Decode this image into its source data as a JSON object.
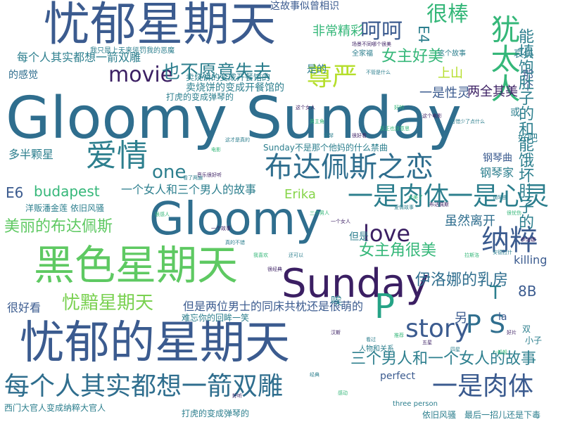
{
  "words": [
    {
      "id": "w-gloomy-sunday",
      "text": "Gloomy Sunday",
      "color": "#2f6e8e"
    },
    {
      "id": "w-youyu-xingqitian",
      "text": "忧郁星期天",
      "color": "#3b5b8f"
    },
    {
      "id": "w-youyu-de-xingqitian",
      "text": "忧郁的星期天",
      "color": "#3b5b8f"
    },
    {
      "id": "w-heise-xingqitian",
      "text": "黑色星期天",
      "color": "#5ec962"
    },
    {
      "id": "w-gloomy",
      "text": "Gloomy",
      "color": "#2f6e8e"
    },
    {
      "id": "w-sunday",
      "text": "Sunday",
      "color": "#3b1f63"
    },
    {
      "id": "w-meige-yijian",
      "text": "每个人其实都想一箭双雕",
      "color": "#2f6e8e"
    },
    {
      "id": "w-yishirouti-big",
      "text": "一是肉体",
      "color": "#3b5b8f"
    },
    {
      "id": "w-budapeisi-zhilian",
      "text": "布达佩斯之恋",
      "color": "#2f6e8e"
    },
    {
      "id": "w-aiqing",
      "text": "爱情",
      "color": "#2d7f8e"
    },
    {
      "id": "w-yishirouti-mid",
      "text": "一是肉体",
      "color": "#2d7f8e"
    },
    {
      "id": "w-yishixinling",
      "text": "一是心灵",
      "color": "#2d7f8e"
    },
    {
      "id": "w-zunyan",
      "text": "尊严",
      "color": "#b5de2b"
    },
    {
      "id": "w-nacui",
      "text": "纳粹",
      "color": "#3b5b8f"
    },
    {
      "id": "w-p",
      "text": "P",
      "color": "#25a386"
    },
    {
      "id": "w-youtairen",
      "text": "犹太人",
      "color": "#35b779"
    },
    {
      "id": "w-henbang",
      "text": "很棒",
      "color": "#35b779"
    },
    {
      "id": "w-hehe",
      "text": "呵呵",
      "color": "#3b5b8f"
    },
    {
      "id": "w-movie",
      "text": "movie",
      "color": "#3b1f63"
    },
    {
      "id": "w-yebuyuan",
      "text": "也不愿意失去",
      "color": "#2d7f8e"
    },
    {
      "id": "w-story",
      "text": "story",
      "color": "#3b5b8f"
    },
    {
      "id": "w-ps",
      "text": "P S",
      "color": "#2f6e8e"
    },
    {
      "id": "w-one",
      "text": "one",
      "color": "#2d7f8e"
    },
    {
      "id": "w-love",
      "text": "love",
      "color": "#3b1f63"
    },
    {
      "id": "w-youan-xingqitian",
      "text": "忧黯星期天",
      "color": "#7ad151"
    },
    {
      "id": "w-sange-nanren",
      "text": "三个男人和一个女人的故事",
      "color": "#2d7f8e"
    },
    {
      "id": "w-nvzhujue",
      "text": "女主角很美",
      "color": "#35b779"
    },
    {
      "id": "w-yiluona",
      "text": "伊洛娜的乳房",
      "color": "#2f6e8e"
    },
    {
      "id": "w-nvzhu-haomei",
      "text": "女主好美",
      "color": "#35b779"
    },
    {
      "id": "w-meili-budapeisi",
      "text": "美丽的布达佩斯",
      "color": "#5ec962"
    },
    {
      "id": "w-budapest",
      "text": "budapest",
      "color": "#35b779"
    },
    {
      "id": "w-yige-nvren",
      "text": "一个女人和三个男人的故事",
      "color": "#2d7f8e"
    },
    {
      "id": "w-erika",
      "text": "Erika",
      "color": "#86d549"
    },
    {
      "id": "w-suiran",
      "text": "虽然离开",
      "color": "#2f6e8e"
    },
    {
      "id": "w-liangquan",
      "text": "两全其美",
      "color": "#3b1f63"
    },
    {
      "id": "w-yishixingling",
      "text": "一是性灵",
      "color": "#3b5b8f"
    },
    {
      "id": "w-shishang",
      "text": "上山",
      "color": "#b5de2b"
    },
    {
      "id": "w-feichang-jingcai",
      "text": "非常精彩",
      "color": "#35b779"
    },
    {
      "id": "w-e4",
      "text": "E4",
      "color": "#2d7f8e"
    },
    {
      "id": "w-shide",
      "text": "是的",
      "color": "#2d7f8e"
    },
    {
      "id": "w-gaishao",
      "text": "卖烧饼的变成开餐馆的",
      "color": "#2d7f8e"
    },
    {
      "id": "w-zhege-gushi",
      "text": "这故事似曾相识",
      "color": "#3b5b8f"
    },
    {
      "id": "w-meige-small",
      "text": "每个人其实都想一箭双雕",
      "color": "#2d7f8e"
    },
    {
      "id": "w-daganjue",
      "text": "的感觉",
      "color": "#2f6e8e"
    },
    {
      "id": "w-duobanke",
      "text": "多半颗星",
      "color": "#2d7f8e"
    },
    {
      "id": "w-e6",
      "text": "E6",
      "color": "#3b5b8f"
    },
    {
      "id": "w-sunday-not",
      "text": "Sunday不是那个他妈的什么禁曲",
      "color": "#2d7f8e"
    },
    {
      "id": "w-gangqinqu",
      "text": "钢琴曲",
      "color": "#3b5b8f"
    },
    {
      "id": "w-gangqinjia",
      "text": "钢琴家",
      "color": "#2d7f8e"
    },
    {
      "id": "w-yangfan",
      "text": "洋贩潘金莲",
      "color": "#2d7f8e"
    },
    {
      "id": "w-yijiu-fengsao",
      "text": "依旧风骚",
      "color": "#2d7f8e"
    },
    {
      "id": "w-danshi",
      "text": "但是",
      "color": "#2d7f8e"
    },
    {
      "id": "w-danshi-liangwei",
      "text": "但是两位男士的同床共枕还是很萌的",
      "color": "#3b5b8f"
    },
    {
      "id": "w-henhaokan",
      "text": "很好看",
      "color": "#3b5b8f"
    },
    {
      "id": "w-ai",
      "text": "唉",
      "color": "#2d7f8e"
    },
    {
      "id": "w-ling",
      "text": "另",
      "color": "#3b5b8f"
    },
    {
      "id": "w-t",
      "text": "T",
      "color": "#2d7f8e"
    },
    {
      "id": "w-8b",
      "text": "8B",
      "color": "#3b5b8f"
    },
    {
      "id": "w-killing",
      "text": "killing",
      "color": "#3b5b8f"
    },
    {
      "id": "w-perfect",
      "text": "perfect",
      "color": "#3b5b8f"
    },
    {
      "id": "w-la",
      "text": "la",
      "color": "#3b5b8f"
    },
    {
      "id": "w-xim-menqing",
      "text": "西门大官人变成纳粹大官人",
      "color": "#2d7f8e"
    },
    {
      "id": "w-dahu",
      "text": "打虎的变成弹琴的",
      "color": "#2d7f8e"
    },
    {
      "id": "w-yijiu-fengsao-b",
      "text": "依旧风骚",
      "color": "#2d7f8e"
    },
    {
      "id": "w-zuihou",
      "text": "最后一招儿还是下毒",
      "color": "#2d7f8e"
    },
    {
      "id": "w-nage",
      "text": "那个",
      "color": "#3b5b8f"
    },
    {
      "id": "w-haoba",
      "text": "好吧",
      "color": "#2d7f8e"
    },
    {
      "id": "w-aishang",
      "text": "哀伤",
      "color": "#2d7f8e"
    },
    {
      "id": "w-mei-chi-bao",
      "text": "能填饱肚子的和能饿坏肚子的",
      "color": "#2d7f8e"
    },
    {
      "id": "w-huo",
      "text": "或",
      "color": "#2d7f8e"
    },
    {
      "id": "w-gaishao-2",
      "text": "卖烧饼的变成开餐馆的",
      "color": "#2d7f8e"
    },
    {
      "id": "w-dahu-2",
      "text": "打虎的变成弹琴的",
      "color": "#2d7f8e"
    },
    {
      "id": "w-wo-zhi-yao",
      "text": "我只是上天来惩罚我的恶魔",
      "color": "#2d7f8e"
    },
    {
      "id": "w-nanwang",
      "text": "难忘你的回眸一笑",
      "color": "#2d7f8e"
    },
    {
      "id": "w-shuang",
      "text": "双",
      "color": "#2d7f8e"
    },
    {
      "id": "w-xiaojie",
      "text": "小子",
      "color": "#2d7f8e"
    },
    {
      "id": "w-quanjia",
      "text": "全家福",
      "color": "#2d7f8e"
    },
    {
      "id": "w-three-person",
      "text": "three person",
      "color": "#2d7f8e"
    },
    {
      "id": "w-renwu",
      "text": "人物和关系",
      "color": "#2d7f8e"
    },
    {
      "id": "w-yijiu-gushi",
      "text": "这个故事",
      "color": "#2d7f8e"
    }
  ],
  "tiny_fragments": [
    "场景不同哪个很美",
    "不管是什么",
    "好的",
    "这个电影",
    "可惜少了点什么",
    "反正也没意思",
    "很好看",
    "钢琴",
    "男主角",
    "这个女人",
    "这才是真的",
    "电影",
    "音乐很好听",
    "看了两遍",
    "很感人",
    "一个故事",
    "真的不错",
    "我喜欢",
    "很经典",
    "还可以",
    "三个男人",
    "一个女人",
    "爱情故事",
    "太美了",
    "布达佩斯",
    "钢琴曲",
    "很忧伤",
    "伊洛娜",
    "安德拉什",
    "拉斯洛",
    "汉斯",
    "看过",
    "推荐",
    "五星",
    "四星",
    "一般般",
    "好片",
    "经典",
    "感动",
    "好听"
  ]
}
